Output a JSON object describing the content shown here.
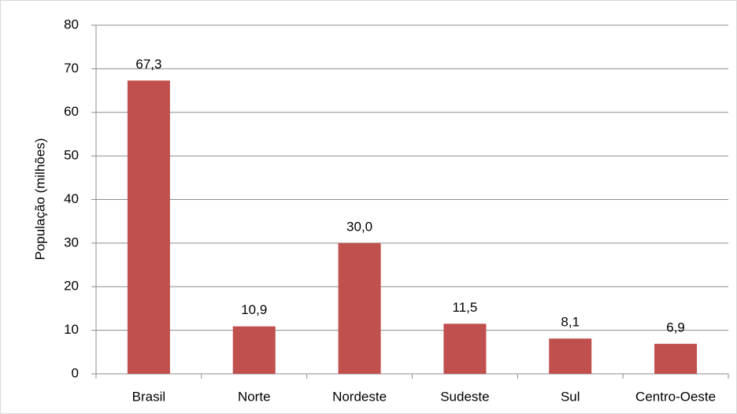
{
  "chart_data": {
    "type": "bar",
    "y_label": "População (milhões)",
    "categories": [
      "Brasil",
      "Norte",
      "Nordeste",
      "Sudeste",
      "Sul",
      "Centro-Oeste"
    ],
    "values": [
      67.3,
      10.9,
      30.0,
      11.5,
      8.1,
      6.9
    ],
    "value_labels": [
      "67,3",
      "10,9",
      "30,0",
      "11,5",
      "8,1",
      "6,9"
    ],
    "color": "#c0504d",
    "ylim": [
      0,
      80
    ],
    "yticks": [
      0,
      10,
      20,
      30,
      40,
      50,
      60,
      70,
      80
    ],
    "grid": true
  }
}
